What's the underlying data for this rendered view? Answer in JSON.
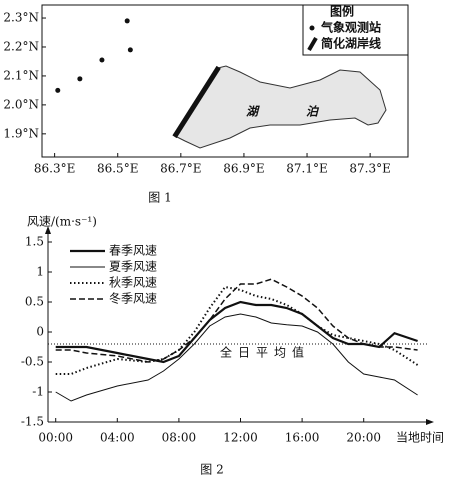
{
  "chart_data": [
    {
      "type": "scatter",
      "caption": "图 1",
      "legend_title": "图例",
      "annotations": [
        "湖",
        "泊"
      ],
      "xlim": [
        86.26,
        87.42
      ],
      "ylim": [
        1.82,
        2.345
      ],
      "xticks": [
        {
          "value": 86.3,
          "label": "86.3°E"
        },
        {
          "value": 86.5,
          "label": "86.5°E"
        },
        {
          "value": 86.7,
          "label": "86.7°E"
        },
        {
          "value": 86.9,
          "label": "86.9°E"
        },
        {
          "value": 87.1,
          "label": "87.1°E"
        },
        {
          "value": 87.3,
          "label": "87.3°E"
        }
      ],
      "yticks": [
        {
          "value": 1.9,
          "label": "1.9°N"
        },
        {
          "value": 2.0,
          "label": "2.0°N"
        },
        {
          "value": 2.1,
          "label": "2.1°N"
        },
        {
          "value": 2.2,
          "label": "2.2°N"
        },
        {
          "value": 2.3,
          "label": "2.3°N"
        }
      ],
      "series": [
        {
          "name": "气象观测站",
          "marker": "dot",
          "color": "#111111",
          "x": [
            86.31,
            86.38,
            86.45,
            86.54,
            86.53
          ],
          "values": [
            2.05,
            2.09,
            2.155,
            2.19,
            2.29
          ]
        },
        {
          "name": "简化湖岸线",
          "marker": "line",
          "color": "#111111",
          "x": [
            86.68,
            86.82
          ],
          "values": [
            1.89,
            2.13
          ]
        }
      ]
    },
    {
      "type": "line",
      "caption": "图 2",
      "y_label": "风速/(m·s⁻¹)",
      "x_label": "当地时间",
      "xlim": [
        -0.5,
        24.5
      ],
      "ylim": [
        -1.5,
        1.7
      ],
      "xticks": [
        {
          "value": 0,
          "label": "00:00"
        },
        {
          "value": 4,
          "label": "04:00"
        },
        {
          "value": 8,
          "label": "08:00"
        },
        {
          "value": 12,
          "label": "12:00"
        },
        {
          "value": 16,
          "label": "16:00"
        },
        {
          "value": 20,
          "label": "20:00"
        }
      ],
      "yticks": [
        -1.5,
        -1,
        -0.5,
        0,
        0.5,
        1,
        1.5
      ],
      "reference_line": {
        "value": -0.2,
        "label": "全日平均值"
      },
      "x": [
        0,
        1,
        2,
        4,
        6,
        7,
        8,
        9,
        10,
        11,
        12,
        13,
        14,
        15,
        16,
        17,
        18,
        19,
        20,
        21,
        22,
        23.5
      ],
      "series": [
        {
          "name": "春季风速",
          "color": "#111111",
          "style": "solid",
          "width": 2.2,
          "values": [
            -0.25,
            -0.25,
            -0.25,
            -0.35,
            -0.45,
            -0.5,
            -0.4,
            -0.1,
            0.2,
            0.4,
            0.5,
            0.45,
            0.45,
            0.4,
            0.3,
            0.1,
            -0.1,
            -0.2,
            -0.2,
            -0.25,
            -0.02,
            -0.15
          ]
        },
        {
          "name": "夏季风速",
          "color": "#111111",
          "style": "solid",
          "width": 1,
          "values": [
            -1.0,
            -1.15,
            -1.05,
            -0.9,
            -0.8,
            -0.65,
            -0.45,
            -0.2,
            0.1,
            0.25,
            0.3,
            0.25,
            0.15,
            0.12,
            0.1,
            0.0,
            -0.2,
            -0.5,
            -0.7,
            -0.75,
            -0.8,
            -1.05
          ]
        },
        {
          "name": "秋季风速",
          "color": "#111111",
          "style": "dotted",
          "width": 2,
          "values": [
            -0.7,
            -0.7,
            -0.6,
            -0.45,
            -0.5,
            -0.45,
            -0.3,
            0.0,
            0.4,
            0.75,
            0.7,
            0.6,
            0.55,
            0.45,
            0.3,
            0.1,
            -0.05,
            -0.1,
            -0.15,
            -0.2,
            -0.3,
            -0.55
          ]
        },
        {
          "name": "冬季风速",
          "color": "#111111",
          "style": "dashed",
          "width": 1.5,
          "values": [
            -0.3,
            -0.3,
            -0.35,
            -0.4,
            -0.5,
            -0.45,
            -0.3,
            -0.1,
            0.2,
            0.55,
            0.8,
            0.8,
            0.88,
            0.75,
            0.6,
            0.4,
            0.1,
            -0.1,
            -0.2,
            -0.25,
            -0.25,
            -0.3
          ]
        }
      ]
    }
  ]
}
